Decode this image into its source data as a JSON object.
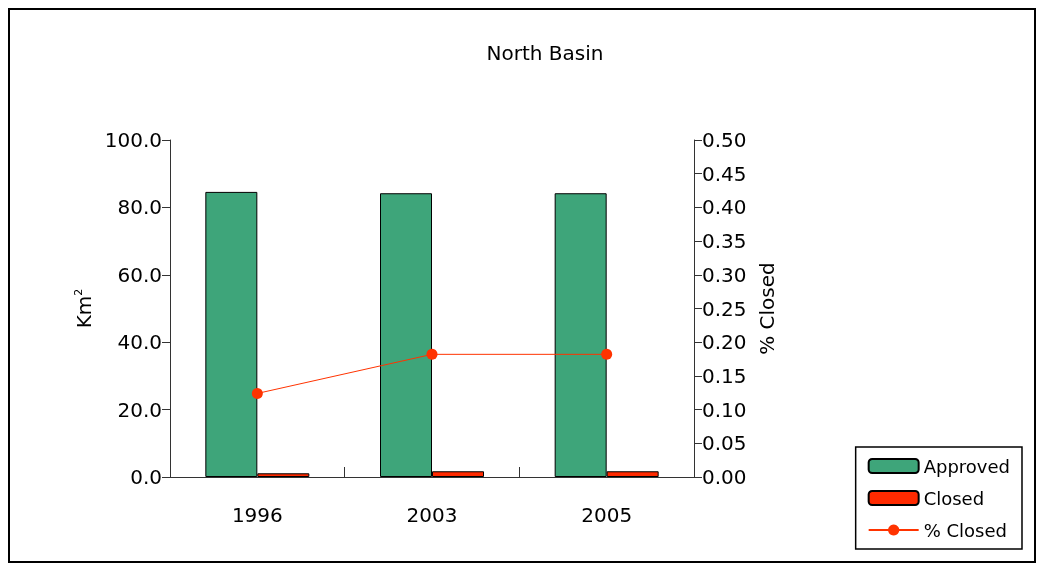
{
  "chart_data": {
    "type": "bar",
    "title": "North Basin",
    "ylabel": "Km$^{2}$",
    "y2label": "% Closed",
    "categories": [
      "1996",
      "2003",
      "2005"
    ],
    "series": [
      {
        "name": "Approved",
        "color": "#3ea57a",
        "values": [
          84.6,
          84.2,
          84.2
        ]
      },
      {
        "name": "Closed",
        "color": "#ff2a00",
        "values": [
          1.1,
          1.7,
          1.7
        ]
      },
      {
        "name": "% Closed",
        "type": "line",
        "axis": "y2",
        "color": "#ff3300",
        "values": [
          0.124,
          0.182,
          0.182
        ]
      }
    ],
    "ylim": [
      0,
      100
    ],
    "yticks": [
      {
        "value": 0,
        "label": "0.0"
      },
      {
        "value": 20,
        "label": "20.0"
      },
      {
        "value": 40,
        "label": "40.0"
      },
      {
        "value": 60,
        "label": "60.0"
      },
      {
        "value": 80,
        "label": "80.0"
      },
      {
        "value": 100,
        "label": "100.0"
      }
    ],
    "y2lim": [
      0,
      0.5
    ],
    "y2ticks": [
      {
        "value": 0,
        "label": "0.00"
      },
      {
        "value": 0.05,
        "label": "0.05"
      },
      {
        "value": 0.1,
        "label": "0.10"
      },
      {
        "value": 0.15,
        "label": "0.15"
      },
      {
        "value": 0.2,
        "label": "0.20"
      },
      {
        "value": 0.25,
        "label": "0.25"
      },
      {
        "value": 0.3,
        "label": "0.30"
      },
      {
        "value": 0.35,
        "label": "0.35"
      },
      {
        "value": 0.4,
        "label": "0.40"
      },
      {
        "value": 0.45,
        "label": "0.45"
      },
      {
        "value": 0.5,
        "label": "0.50"
      }
    ],
    "legend": "bottom right",
    "marker": "circle",
    "line_style": "solid"
  }
}
